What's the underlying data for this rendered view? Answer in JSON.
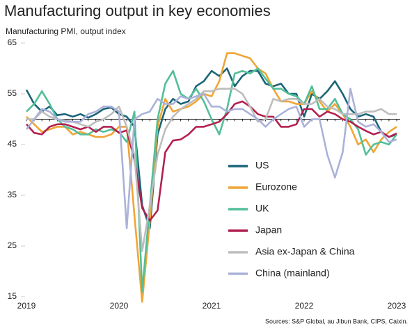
{
  "chart_data": {
    "type": "line",
    "title": "Manufacturing output in key economies",
    "subtitle": "Manufacturing PMI, output index",
    "source": "Sources: S&P Global, au Jibun Bank, CIPS, Caixin.",
    "categories": [
      "2019",
      null,
      null,
      null,
      null,
      null,
      null,
      null,
      null,
      null,
      null,
      null,
      "2020",
      null,
      null,
      null,
      null,
      null,
      null,
      null,
      null,
      null,
      null,
      null,
      "2021",
      null,
      null,
      null,
      null,
      null,
      null,
      null,
      null,
      null,
      null,
      null,
      "2022",
      null,
      null,
      null,
      null,
      null,
      null,
      null,
      null,
      null,
      null,
      null,
      "2023"
    ],
    "ylim": [
      15,
      65
    ],
    "yticks": [
      15,
      25,
      35,
      45,
      55,
      65
    ],
    "reference_line": 50,
    "legend": "center",
    "series": [
      {
        "name": "US",
        "color": "#1b6478",
        "values": [
          55.8,
          53,
          51.5,
          52.5,
          50.8,
          51,
          50.5,
          51,
          50.3,
          51,
          52,
          52.3,
          51,
          50.5,
          48.5,
          33,
          28.5,
          47,
          52,
          54,
          53,
          53.5,
          56.5,
          57.5,
          59.5,
          58.5,
          60,
          56.5,
          58.5,
          59.5,
          59.5,
          57,
          56.5,
          57,
          55,
          55,
          50.5,
          55,
          54,
          55.5,
          57.5,
          55,
          52,
          50.5,
          51,
          50.5,
          47.5,
          46.5,
          47
        ]
      },
      {
        "name": "Eurozone",
        "color": "#f0a535",
        "values": [
          50.5,
          49,
          47.5,
          48,
          48.5,
          48.5,
          47,
          47.5,
          47,
          46.5,
          46.5,
          47,
          48.5,
          48.5,
          31,
          14,
          30,
          48.5,
          54,
          51.5,
          52,
          52.5,
          53.5,
          55,
          54.5,
          57.5,
          63,
          63,
          62.5,
          62,
          60,
          59,
          56,
          53.5,
          53.5,
          53,
          53,
          55.5,
          53.5,
          51.5,
          53,
          51,
          48.5,
          45,
          46,
          43.5,
          46,
          47.5,
          48.5
        ]
      },
      {
        "name": "UK",
        "color": "#52bf98",
        "values": [
          51.5,
          53,
          55.5,
          53,
          50,
          48.5,
          48,
          47,
          47,
          48,
          47.5,
          48,
          47.5,
          45.5,
          51.5,
          16,
          33,
          50,
          57,
          59.5,
          55,
          54,
          56,
          53.5,
          50,
          47,
          52,
          59,
          59.5,
          59,
          60,
          58,
          56,
          56,
          55,
          54.5,
          53,
          56.5,
          52,
          52,
          54,
          51,
          50,
          48,
          43,
          45,
          45.5,
          45,
          47
        ]
      },
      {
        "name": "Japan",
        "color": "#b3204f",
        "values": [
          49,
          47.3,
          47,
          48.5,
          49,
          49,
          48.5,
          48,
          48.5,
          47.5,
          48.5,
          48.5,
          47.3,
          47.8,
          42,
          32.5,
          30,
          32,
          43.5,
          45.8,
          46,
          47,
          48.5,
          48.5,
          49,
          49.5,
          51,
          53,
          53.5,
          52.5,
          51,
          50.5,
          50.5,
          48.5,
          48.5,
          49,
          52,
          52,
          50.5,
          51.5,
          51,
          50,
          49.5,
          48.5,
          47.7,
          47,
          47.5,
          46.5,
          47.2
        ]
      },
      {
        "name": "Asia ex-Japan & China",
        "color": "#bdbdbd",
        "values": [
          50,
          50,
          51.5,
          50.5,
          50,
          49.8,
          49.5,
          49,
          48.5,
          49.5,
          50,
          51,
          52.5,
          48.5,
          43,
          24,
          33,
          43,
          48,
          50.5,
          52,
          53,
          54,
          55.5,
          55.5,
          56,
          56,
          56,
          55,
          52.5,
          49.5,
          50,
          54,
          53.5,
          54,
          54,
          53,
          53,
          54,
          52.5,
          52,
          51,
          51,
          51,
          51.5,
          51.5,
          52,
          51,
          51
        ]
      },
      {
        "name": "China (mainland)",
        "color": "#aab2da",
        "values": [
          48,
          50,
          52,
          51.5,
          50,
          49.5,
          49.5,
          49.5,
          51,
          51.5,
          52.5,
          52.5,
          51.5,
          28.5,
          50,
          51,
          51.5,
          54,
          53,
          53,
          54.5,
          54,
          54.5,
          55,
          52.5,
          52.5,
          51.5,
          52,
          52,
          51,
          50,
          48.5,
          50,
          51,
          52,
          52.5,
          48.5,
          50,
          50,
          43,
          38.5,
          43.5,
          56,
          49.5,
          48.5,
          49,
          47.5,
          45.5,
          46
        ]
      }
    ]
  }
}
